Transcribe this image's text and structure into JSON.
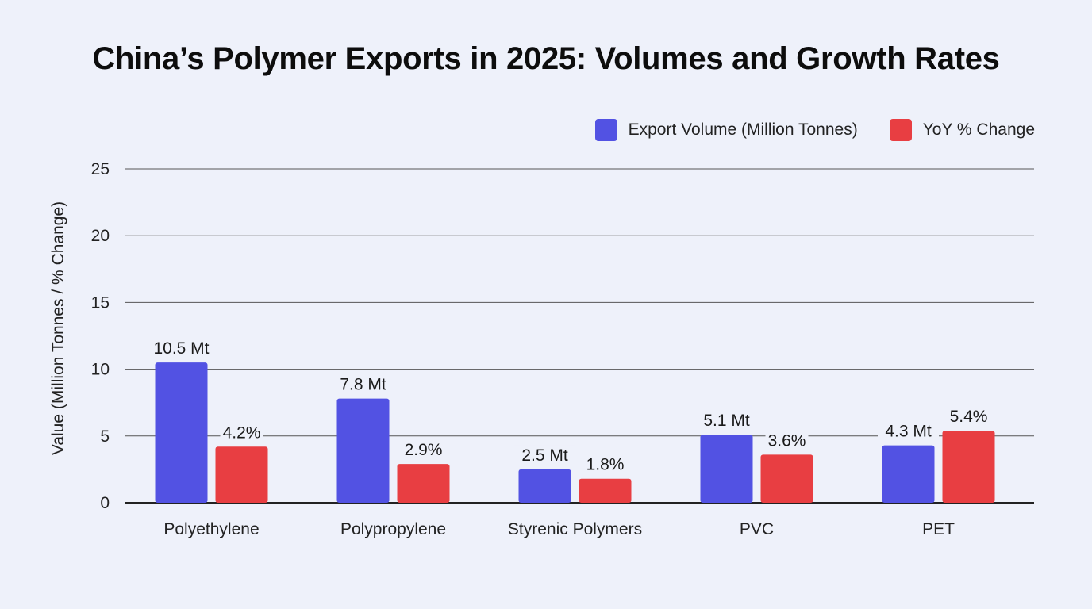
{
  "chart_data": {
    "type": "bar",
    "title": "China’s Polymer Exports in 2025: Volumes and Growth Rates",
    "ylabel": "Value (Million Tonnes / % Change)",
    "xlabel": "",
    "ylim": [
      0,
      25
    ],
    "yticks": [
      0,
      5,
      10,
      15,
      20,
      25
    ],
    "grid": true,
    "legend_position": "top-right",
    "categories": [
      "Polyethylene",
      "Polypropylene",
      "Styrenic Polymers",
      "PVC",
      "PET"
    ],
    "series": [
      {
        "name": "Export Volume (Million Tonnes)",
        "color": "#5252e3",
        "values": [
          10.5,
          7.8,
          2.5,
          5.1,
          4.3
        ],
        "labels": [
          "10.5 Mt",
          "7.8 Mt",
          "2.5 Mt",
          "5.1 Mt",
          "4.3 Mt"
        ]
      },
      {
        "name": "YoY % Change",
        "color": "#e83e42",
        "values": [
          4.2,
          2.9,
          1.8,
          3.6,
          5.4
        ],
        "labels": [
          "4.2%",
          "2.9%",
          "1.8%",
          "3.6%",
          "5.4%"
        ]
      }
    ]
  }
}
